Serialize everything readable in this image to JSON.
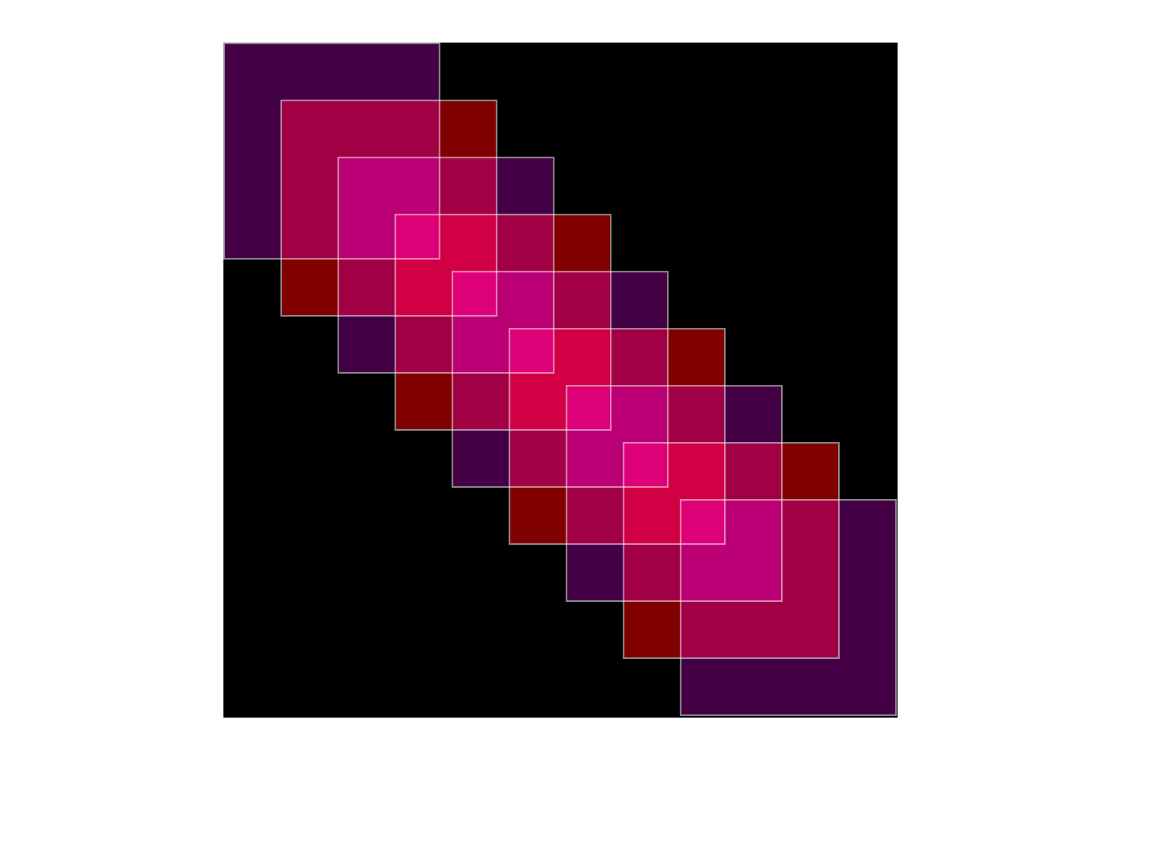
{
  "artwork": {
    "background_color": "#000000",
    "square_stroke_color": "#a0a0a0",
    "square_count": 9,
    "squares": [
      {
        "color": "#440044"
      },
      {
        "color": "#800000"
      },
      {
        "color": "#440044"
      },
      {
        "color": "#800000"
      },
      {
        "color": "#440044"
      },
      {
        "color": "#800000"
      },
      {
        "color": "#440044"
      },
      {
        "color": "#800000"
      },
      {
        "color": "#440044"
      }
    ]
  }
}
